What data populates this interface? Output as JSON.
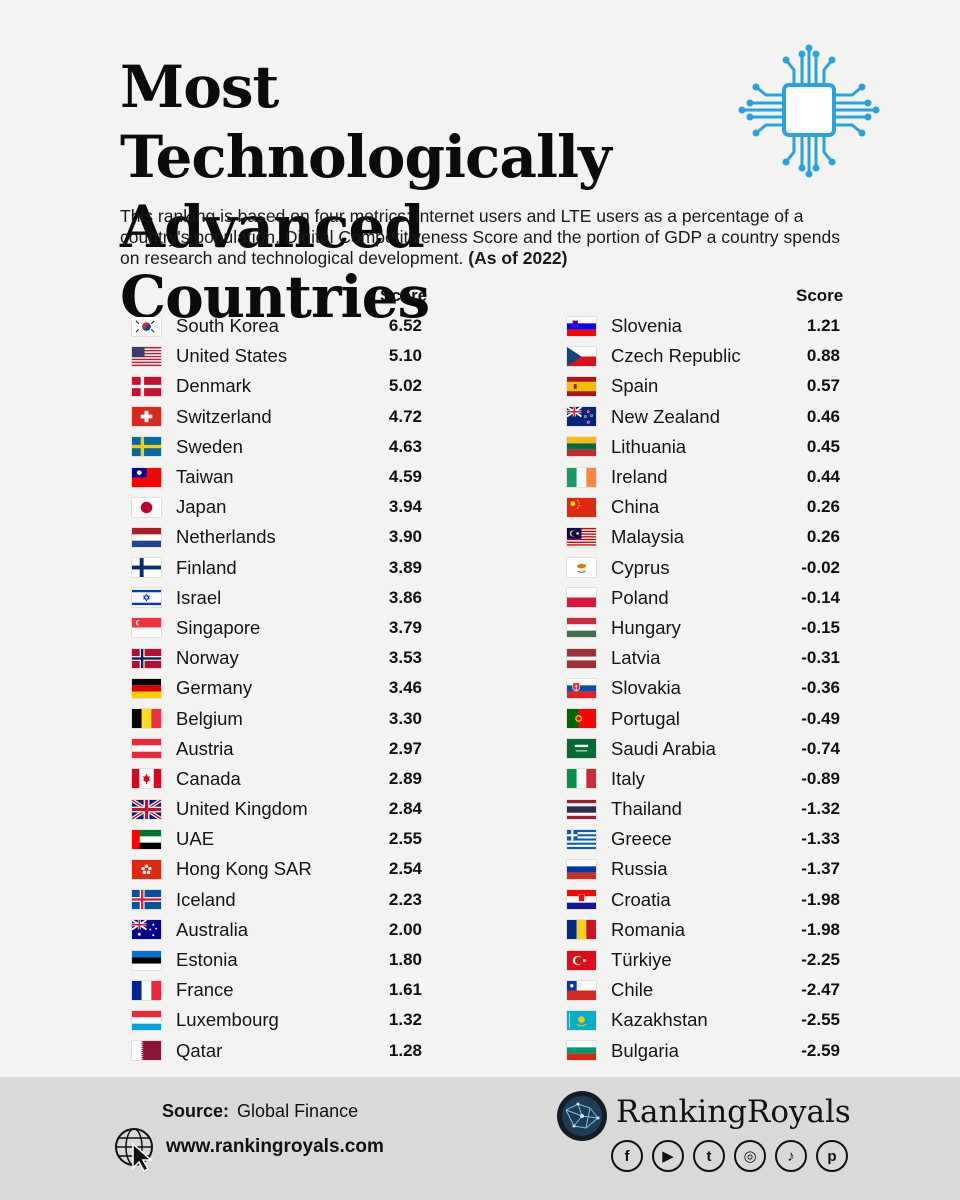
{
  "title_line1": "Most Technologically",
  "title_line2": "Advanced Countries",
  "description": "This ranking is based on four metrics: internet users and LTE users as a percentage of a country's population, Digital Competitiveness Score and the portion of GDP a country spends on research and technological development.",
  "as_of": "(As of 2022)",
  "score_header": "Score",
  "colors": {
    "chip": "#2aa3dc",
    "text": "#111111",
    "footer_bg": "#d9d9d7",
    "background": "#f3f3f2"
  },
  "left_rows": [
    {
      "country": "South Korea",
      "score": "6.52",
      "flag": "kr"
    },
    {
      "country": "United States",
      "score": "5.10",
      "flag": "us"
    },
    {
      "country": "Denmark",
      "score": "5.02",
      "flag": "dk"
    },
    {
      "country": "Switzerland",
      "score": "4.72",
      "flag": "ch"
    },
    {
      "country": "Sweden",
      "score": "4.63",
      "flag": "se"
    },
    {
      "country": "Taiwan",
      "score": "4.59",
      "flag": "tw"
    },
    {
      "country": "Japan",
      "score": "3.94",
      "flag": "jp"
    },
    {
      "country": "Netherlands",
      "score": "3.90",
      "flag": "nl"
    },
    {
      "country": "Finland",
      "score": "3.89",
      "flag": "fi"
    },
    {
      "country": "Israel",
      "score": "3.86",
      "flag": "il"
    },
    {
      "country": "Singapore",
      "score": "3.79",
      "flag": "sg"
    },
    {
      "country": "Norway",
      "score": "3.53",
      "flag": "no"
    },
    {
      "country": "Germany",
      "score": "3.46",
      "flag": "de"
    },
    {
      "country": "Belgium",
      "score": "3.30",
      "flag": "be"
    },
    {
      "country": "Austria",
      "score": "2.97",
      "flag": "at"
    },
    {
      "country": "Canada",
      "score": "2.89",
      "flag": "ca"
    },
    {
      "country": "United Kingdom",
      "score": "2.84",
      "flag": "gb"
    },
    {
      "country": "UAE",
      "score": "2.55",
      "flag": "ae"
    },
    {
      "country": "Hong Kong SAR",
      "score": "2.54",
      "flag": "hk"
    },
    {
      "country": "Iceland",
      "score": "2.23",
      "flag": "is"
    },
    {
      "country": "Australia",
      "score": "2.00",
      "flag": "au"
    },
    {
      "country": "Estonia",
      "score": "1.80",
      "flag": "ee"
    },
    {
      "country": "France",
      "score": "1.61",
      "flag": "fr"
    },
    {
      "country": "Luxembourg",
      "score": "1.32",
      "flag": "lu"
    },
    {
      "country": "Qatar",
      "score": "1.28",
      "flag": "qa"
    }
  ],
  "right_rows": [
    {
      "country": "Slovenia",
      "score": "1.21",
      "flag": "si"
    },
    {
      "country": "Czech Republic",
      "score": "0.88",
      "flag": "cz"
    },
    {
      "country": "Spain",
      "score": "0.57",
      "flag": "es"
    },
    {
      "country": "New Zealand",
      "score": "0.46",
      "flag": "nz"
    },
    {
      "country": "Lithuania",
      "score": "0.45",
      "flag": "lt"
    },
    {
      "country": "Ireland",
      "score": "0.44",
      "flag": "ie"
    },
    {
      "country": "China",
      "score": "0.26",
      "flag": "cn"
    },
    {
      "country": "Malaysia",
      "score": "0.26",
      "flag": "my"
    },
    {
      "country": "Cyprus",
      "score": "-0.02",
      "flag": "cy"
    },
    {
      "country": "Poland",
      "score": "-0.14",
      "flag": "pl"
    },
    {
      "country": "Hungary",
      "score": "-0.15",
      "flag": "hu"
    },
    {
      "country": "Latvia",
      "score": "-0.31",
      "flag": "lv"
    },
    {
      "country": "Slovakia",
      "score": "-0.36",
      "flag": "sk"
    },
    {
      "country": "Portugal",
      "score": "-0.49",
      "flag": "pt"
    },
    {
      "country": "Saudi Arabia",
      "score": "-0.74",
      "flag": "sa"
    },
    {
      "country": "Italy",
      "score": "-0.89",
      "flag": "it"
    },
    {
      "country": "Thailand",
      "score": "-1.32",
      "flag": "th"
    },
    {
      "country": "Greece",
      "score": "-1.33",
      "flag": "gr"
    },
    {
      "country": "Russia",
      "score": "-1.37",
      "flag": "ru"
    },
    {
      "country": "Croatia",
      "score": "-1.98",
      "flag": "hr"
    },
    {
      "country": "Romania",
      "score": "-1.98",
      "flag": "ro"
    },
    {
      "country": "Türkiye",
      "score": "-2.25",
      "flag": "tr"
    },
    {
      "country": "Chile",
      "score": "-2.47",
      "flag": "cl"
    },
    {
      "country": "Kazakhstan",
      "score": "-2.55",
      "flag": "kz"
    },
    {
      "country": "Bulgaria",
      "score": "-2.59",
      "flag": "bg"
    }
  ],
  "footer": {
    "source_label": "Source:",
    "source_value": "Global Finance",
    "website": "www.rankingroyals.com",
    "brand": "RankingRoyals",
    "social": [
      {
        "icon": "facebook-icon",
        "glyph": "f"
      },
      {
        "icon": "youtube-icon",
        "glyph": "▶"
      },
      {
        "icon": "twitter-icon",
        "glyph": "t"
      },
      {
        "icon": "instagram-icon",
        "glyph": "◎"
      },
      {
        "icon": "tiktok-icon",
        "glyph": "♪"
      },
      {
        "icon": "pinterest-icon",
        "glyph": "p"
      }
    ]
  }
}
